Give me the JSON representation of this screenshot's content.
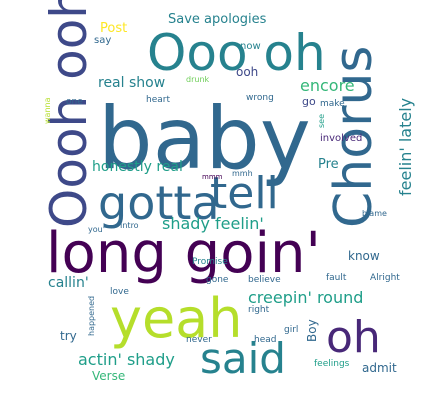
{
  "palette": {
    "purple": "#440154",
    "indigo": "#482878",
    "blue": "#3e4989",
    "steel": "#31688e",
    "teal": "#26828e",
    "sea": "#1f9e89",
    "green": "#35b779",
    "lime": "#6ece58",
    "yellowgreen": "#b5de2b",
    "yellow": "#fde725"
  },
  "words": {
    "baby": "baby",
    "long_goin": "long goin'",
    "yeah": "yeah",
    "chorus": "Chorus",
    "oooh_ooh": "Oooh ooh",
    "ooo_oh": "Ooo oh",
    "gotta": "gotta",
    "tell": "tell",
    "oh": "oh",
    "said": "said",
    "feelin_lately": "feelin' lately",
    "creepin_round": "creepin' round",
    "actin_shady": "actin' shady",
    "shady_feelin": "shady feelin'",
    "honestly_real": "honestly real",
    "real_show": "real show",
    "encore": "encore",
    "save_apologies": "Save apologies",
    "post": "Post",
    "callin": "callin'",
    "ooh": "ooh",
    "go": "go",
    "pre": "Pre",
    "know": "know",
    "boy": "Boy",
    "try": "try",
    "verse": "Verse",
    "admit": "admit",
    "now": "now",
    "say": "say",
    "one": "one",
    "heart": "heart",
    "wrong": "wrong",
    "make": "make",
    "involved": "involved",
    "see": "see",
    "blame": "blame",
    "fault": "fault",
    "alright": "Alright",
    "believe": "believe",
    "gone": "gone",
    "promise": "Promise",
    "love": "love",
    "happened": "happened",
    "right": "right",
    "girl": "girl",
    "head": "head",
    "never": "never",
    "feelings": "feelings",
    "intro": "Intro",
    "you": "you'",
    "mmh": "mmh",
    "mmm": "mmm",
    "drunk": "drunk",
    "wanna": "wanna"
  }
}
